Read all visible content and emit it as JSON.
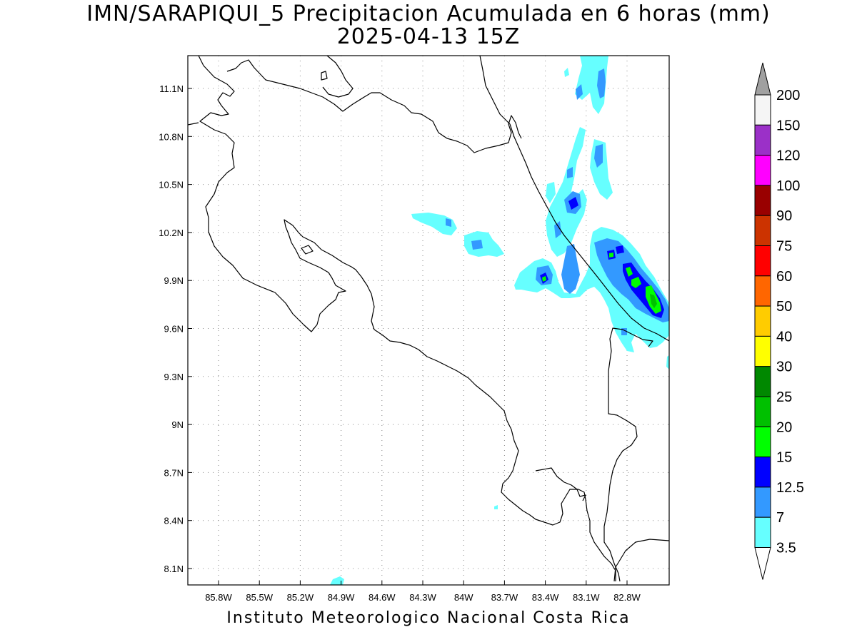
{
  "title": {
    "line1": "IMN/SARAPIQUI_5 Precipitacion Acumulada en 6 horas (mm)",
    "line2": "2025-04-13 15Z"
  },
  "footer": "Instituto Meteorologico Nacional Costa Rica",
  "axes": {
    "x_ticks": [
      "85.8W",
      "85.5W",
      "85.2W",
      "84.9W",
      "84.6W",
      "84.3W",
      "84W",
      "83.7W",
      "83.4W",
      "83.1W",
      "82.8W"
    ],
    "y_ticks": [
      "11.1N",
      "10.8N",
      "10.5N",
      "10.2N",
      "9.9N",
      "9.6N",
      "9.3N",
      "9N",
      "8.7N",
      "8.4N",
      "8.1N"
    ],
    "lon_range": [
      -85.98,
      -82.52
    ],
    "lat_range": [
      8.0,
      11.3
    ],
    "grid": true
  },
  "colorbar": {
    "labels": [
      "200",
      "150",
      "120",
      "100",
      "90",
      "75",
      "60",
      "50",
      "40",
      "30",
      "25",
      "20",
      "15",
      "12.5",
      "7",
      "3.5"
    ],
    "colors": [
      "#f5f5f5",
      "#9b30c8",
      "#ff00ff",
      "#990000",
      "#cc3300",
      "#ff0000",
      "#ff6600",
      "#ffcc00",
      "#ffff00",
      "#008800",
      "#00c000",
      "#00ff00",
      "#0000ff",
      "#3399ff",
      "#66ffff"
    ],
    "top_arrow_color": "#a0a0a0",
    "bottom_arrow_color": "#ffffff"
  },
  "chart_data": {
    "type": "heatmap",
    "variable": "Precipitacion Acumulada en 6 horas (mm)",
    "levels_mm": [
      3.5,
      7,
      12.5,
      15,
      20,
      25,
      30,
      40,
      50,
      60,
      75,
      90,
      100,
      120,
      150,
      200
    ],
    "max_observed_class": "20-25",
    "rain_areas": [
      {
        "lon": -83.25,
        "lat": 10.95,
        "max_mm": 7
      },
      {
        "lon": -83.0,
        "lat": 10.55,
        "max_mm": 7
      },
      {
        "lon": -83.15,
        "lat": 10.35,
        "max_mm": 12.5
      },
      {
        "lon": -84.05,
        "lat": 10.15,
        "max_mm": 7
      },
      {
        "lon": -83.4,
        "lat": 9.9,
        "max_mm": 20
      },
      {
        "lon": -82.95,
        "lat": 10.05,
        "max_mm": 20
      },
      {
        "lon": -82.75,
        "lat": 9.85,
        "max_mm": 20
      },
      {
        "lon": -82.65,
        "lat": 9.75,
        "max_mm": 20
      },
      {
        "lon": -84.9,
        "lat": 8.0,
        "max_mm": 3.5
      }
    ]
  }
}
